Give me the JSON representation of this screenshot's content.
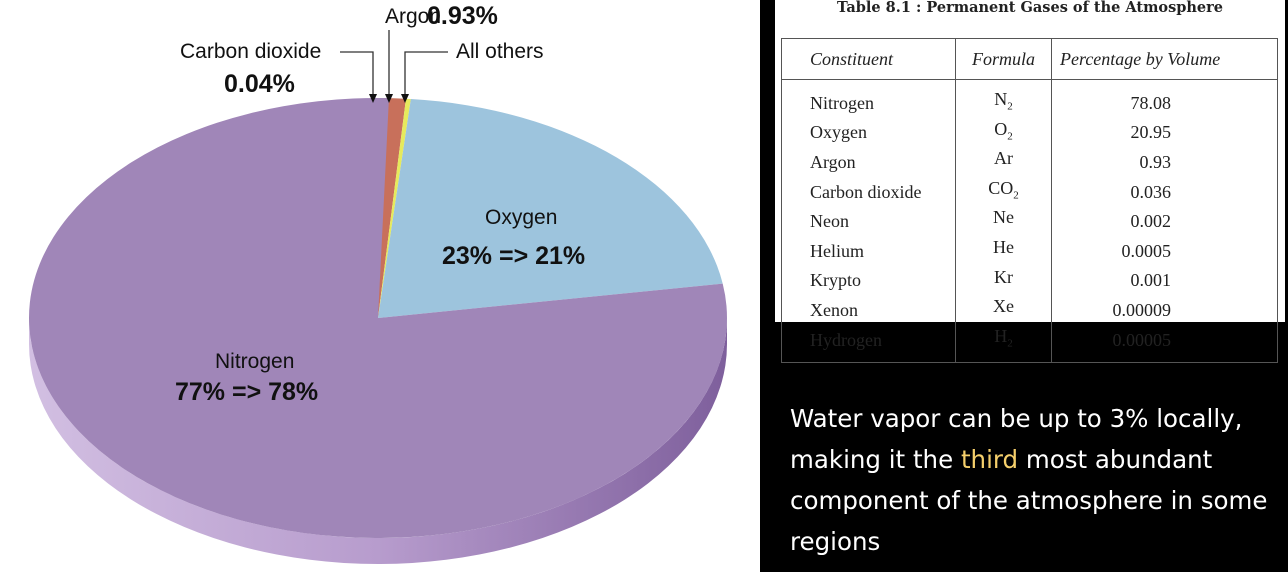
{
  "chart_data": {
    "type": "pie",
    "title": "",
    "slices": [
      {
        "name": "Carbon dioxide",
        "value": 0.04,
        "color": "#6e4a2f"
      },
      {
        "name": "Argon",
        "value": 0.93,
        "color": "#c8705b"
      },
      {
        "name": "All others",
        "value": 0.03,
        "color": "#e6ea5c"
      },
      {
        "name": "Oxygen",
        "value": 21,
        "color": "#9dc4dd"
      },
      {
        "name": "Nitrogen",
        "value": 78,
        "color": "#a086b8"
      }
    ],
    "labels": {
      "argon_name": "Argon",
      "argon_value": "0.93%",
      "co2_name": "Carbon dioxide",
      "co2_value": "0.04%",
      "others_name": "All others",
      "oxygen_name": "Oxygen",
      "oxygen_value": "23% => 21%",
      "nitrogen_name": "Nitrogen",
      "nitrogen_value": "77% => 78%"
    }
  },
  "table": {
    "title": "Table 8.1 : Permanent Gases of the Atmosphere",
    "headers": [
      "Constituent",
      "Formula",
      "Percentage by Volume"
    ],
    "rows": [
      {
        "name": "Nitrogen",
        "formula": "N",
        "sub": "2",
        "pct": "78.08"
      },
      {
        "name": "Oxygen",
        "formula": "O",
        "sub": "2",
        "pct": "20.95"
      },
      {
        "name": "Argon",
        "formula": "Ar",
        "sub": "",
        "pct": "0.93"
      },
      {
        "name": "Carbon dioxide",
        "formula": "CO",
        "sub": "2",
        "pct": "0.036"
      },
      {
        "name": "Neon",
        "formula": "Ne",
        "sub": "",
        "pct": "0.002"
      },
      {
        "name": "Helium",
        "formula": "He",
        "sub": "",
        "pct": "0.0005"
      },
      {
        "name": "Krypto",
        "formula": "Kr",
        "sub": "",
        "pct": "0.001"
      },
      {
        "name": "Xenon",
        "formula": "Xe",
        "sub": "",
        "pct": "0.00009"
      },
      {
        "name": "Hydrogen",
        "formula": "H",
        "sub": "2",
        "pct": "0.00005"
      }
    ]
  },
  "note": {
    "before": "Water vapor can be up to 3% locally, making it the ",
    "highlight": "third",
    "after": " most abundant component of the atmosphere in some regions",
    "highlight_color": "#f5cf6b"
  }
}
